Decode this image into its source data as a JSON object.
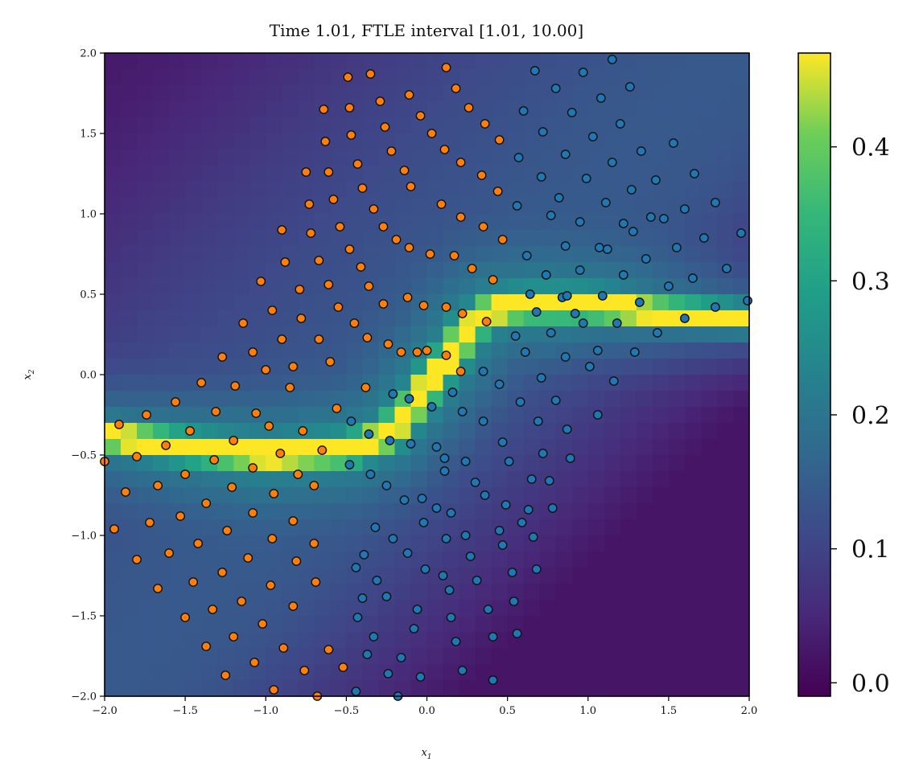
{
  "chart_data": {
    "type": "heatmap",
    "title": "Time 1.01, FTLE interval [1.01, 10.00]",
    "xlabel": "x",
    "xlabel_sub": "1",
    "ylabel": "x",
    "ylabel_sub": "2",
    "xlim": [
      -2.0,
      2.0
    ],
    "ylim": [
      -2.0,
      2.0
    ],
    "xticks": [
      "−2.0",
      "−1.5",
      "−1.0",
      "−0.5",
      "0.0",
      "0.5",
      "1.0",
      "1.5",
      "2.0"
    ],
    "yticks": [
      "−2.0",
      "−1.5",
      "−1.0",
      "−0.5",
      "0.0",
      "0.5",
      "1.0",
      "1.5",
      "2.0"
    ],
    "colormap": "viridis",
    "color_range": [
      -0.01,
      0.47
    ],
    "colorbar_ticks": [
      "0.0",
      "0.1",
      "0.2",
      "0.3",
      "0.4"
    ],
    "grid_resolution": 40,
    "field_description_points": {
      "ridge_center": [
        [
          -2.0,
          -0.38
        ],
        [
          -1.5,
          -0.45
        ],
        [
          -1.0,
          -0.5
        ],
        [
          -0.5,
          -0.47
        ],
        [
          -0.25,
          -0.38
        ],
        [
          -0.05,
          -0.15
        ],
        [
          0.05,
          0.0
        ],
        [
          0.15,
          0.12
        ],
        [
          0.25,
          0.28
        ],
        [
          0.4,
          0.4
        ],
        [
          0.6,
          0.43
        ],
        [
          1.0,
          0.43
        ],
        [
          1.5,
          0.38
        ],
        [
          2.0,
          0.35
        ]
      ],
      "ridge_peak": 0.46,
      "background_upper_left": 0.03,
      "background_lower_right": 0.0,
      "background_center_band": 0.12
    },
    "series": [
      {
        "name": "",
        "color": "#ff7f0e",
        "edge_color": "#111111",
        "points": [
          [
            -2.0,
            -0.54
          ],
          [
            -1.94,
            -0.96
          ],
          [
            -1.91,
            -0.31
          ],
          [
            -1.87,
            -0.73
          ],
          [
            -1.8,
            -1.15
          ],
          [
            -1.8,
            -0.51
          ],
          [
            -1.74,
            -0.25
          ],
          [
            -1.72,
            -0.92
          ],
          [
            -1.67,
            -1.33
          ],
          [
            -1.67,
            -0.69
          ],
          [
            -1.62,
            -0.44
          ],
          [
            -1.6,
            -1.11
          ],
          [
            -1.56,
            -0.17
          ],
          [
            -1.53,
            -0.88
          ],
          [
            -1.5,
            -1.51
          ],
          [
            -1.5,
            -0.62
          ],
          [
            -1.47,
            -0.35
          ],
          [
            -1.45,
            -1.29
          ],
          [
            -1.42,
            -1.05
          ],
          [
            -1.4,
            -0.05
          ],
          [
            -1.37,
            -0.8
          ],
          [
            -1.37,
            -1.69
          ],
          [
            -1.33,
            -1.46
          ],
          [
            -1.32,
            -0.53
          ],
          [
            -1.31,
            -0.23
          ],
          [
            -1.27,
            0.11
          ],
          [
            -1.27,
            -1.23
          ],
          [
            -1.25,
            -1.87
          ],
          [
            -1.24,
            -0.97
          ],
          [
            -1.21,
            -0.7
          ],
          [
            -1.2,
            -0.41
          ],
          [
            -1.2,
            -1.63
          ],
          [
            -1.19,
            -0.07
          ],
          [
            -1.15,
            -1.41
          ],
          [
            -1.14,
            0.32
          ],
          [
            -1.11,
            -1.14
          ],
          [
            -1.08,
            -0.86
          ],
          [
            -1.08,
            -0.58
          ],
          [
            -1.08,
            0.14
          ],
          [
            -1.07,
            -1.79
          ],
          [
            -1.06,
            -0.24
          ],
          [
            -1.03,
            0.58
          ],
          [
            -1.02,
            -1.55
          ],
          [
            -1.0,
            0.03
          ],
          [
            -0.98,
            -0.32
          ],
          [
            -0.97,
            -1.31
          ],
          [
            -0.96,
            -1.02
          ],
          [
            -0.96,
            0.4
          ],
          [
            -0.95,
            -0.74
          ],
          [
            -0.95,
            -1.96
          ],
          [
            -0.91,
            -0.49
          ],
          [
            -0.9,
            0.22
          ],
          [
            -0.9,
            0.9
          ],
          [
            -0.89,
            -1.7
          ],
          [
            -0.88,
            0.7
          ],
          [
            -0.85,
            -0.08
          ],
          [
            -0.83,
            -0.91
          ],
          [
            -0.83,
            -1.44
          ],
          [
            -0.83,
            0.05
          ],
          [
            -0.81,
            -1.16
          ],
          [
            -0.8,
            -0.62
          ],
          [
            -0.79,
            0.53
          ],
          [
            -0.78,
            0.35
          ],
          [
            -0.77,
            -0.35
          ],
          [
            -0.76,
            -1.84
          ],
          [
            -0.75,
            1.26
          ],
          [
            -0.73,
            1.06
          ],
          [
            -0.72,
            0.88
          ],
          [
            -0.7,
            -0.69
          ],
          [
            -0.7,
            -1.05
          ],
          [
            -0.69,
            -1.29
          ],
          [
            -0.68,
            -2.0
          ],
          [
            -0.67,
            0.22
          ],
          [
            -0.67,
            0.71
          ],
          [
            -0.65,
            -0.47
          ],
          [
            -0.64,
            1.65
          ],
          [
            -0.63,
            1.45
          ],
          [
            -0.61,
            -1.71
          ],
          [
            -0.61,
            0.56
          ],
          [
            -0.61,
            1.26
          ],
          [
            -0.6,
            0.08
          ],
          [
            -0.58,
            1.09
          ],
          [
            -0.56,
            -0.21
          ],
          [
            -0.55,
            0.42
          ],
          [
            -0.54,
            0.92
          ],
          [
            -0.52,
            -1.82
          ],
          [
            -0.49,
            1.85
          ],
          [
            -0.48,
            1.66
          ],
          [
            -0.48,
            0.78
          ],
          [
            -0.47,
            1.49
          ],
          [
            -0.45,
            0.32
          ],
          [
            -0.43,
            1.31
          ],
          [
            -0.41,
            0.67
          ],
          [
            -0.4,
            1.16
          ],
          [
            -0.38,
            -0.08
          ],
          [
            -0.37,
            0.23
          ],
          [
            -0.36,
            0.55
          ],
          [
            -0.35,
            1.87
          ],
          [
            -0.33,
            1.03
          ],
          [
            -0.29,
            1.7
          ],
          [
            -0.27,
            0.92
          ],
          [
            -0.27,
            0.44
          ],
          [
            -0.26,
            1.54
          ],
          [
            -0.24,
            0.19
          ],
          [
            -0.22,
            1.39
          ],
          [
            -0.19,
            0.84
          ],
          [
            -0.16,
            0.14
          ],
          [
            -0.14,
            1.27
          ],
          [
            -0.12,
            0.48
          ],
          [
            -0.11,
            1.74
          ],
          [
            -0.11,
            0.79
          ],
          [
            -0.1,
            1.17
          ],
          [
            -0.06,
            0.14
          ],
          [
            -0.04,
            1.61
          ],
          [
            -0.02,
            0.43
          ],
          [
            0.0,
            0.15
          ],
          [
            0.02,
            0.75
          ],
          [
            0.03,
            1.5
          ],
          [
            0.09,
            1.06
          ],
          [
            0.11,
            1.4
          ],
          [
            0.12,
            0.42
          ],
          [
            0.12,
            0.12
          ],
          [
            0.12,
            1.91
          ],
          [
            0.17,
            0.74
          ],
          [
            0.18,
            1.78
          ],
          [
            0.21,
            1.32
          ],
          [
            0.21,
            0.02
          ],
          [
            0.22,
            0.38
          ],
          [
            0.21,
            0.98
          ],
          [
            0.26,
            1.66
          ],
          [
            0.28,
            0.66
          ],
          [
            0.34,
            1.24
          ],
          [
            0.35,
            0.92
          ],
          [
            0.36,
            1.56
          ],
          [
            0.37,
            0.33
          ],
          [
            0.41,
            0.59
          ],
          [
            0.44,
            1.14
          ],
          [
            0.45,
            1.46
          ],
          [
            0.47,
            0.84
          ]
        ]
      },
      {
        "name": "",
        "color": "#1f77b4",
        "edge_color": "#111111",
        "points": [
          [
            -0.48,
            -0.56
          ],
          [
            -0.47,
            -0.29
          ],
          [
            -0.44,
            -1.97
          ],
          [
            -0.44,
            -1.2
          ],
          [
            -0.43,
            -1.51
          ],
          [
            -0.4,
            -1.39
          ],
          [
            -0.39,
            -1.12
          ],
          [
            -0.37,
            -1.74
          ],
          [
            -0.36,
            -0.37
          ],
          [
            -0.35,
            -0.62
          ],
          [
            -0.33,
            -1.63
          ],
          [
            -0.32,
            -0.95
          ],
          [
            -0.31,
            -1.28
          ],
          [
            -0.25,
            -0.69
          ],
          [
            -0.25,
            -1.38
          ],
          [
            -0.24,
            -1.86
          ],
          [
            -0.23,
            -0.41
          ],
          [
            -0.21,
            -0.12
          ],
          [
            -0.21,
            -1.02
          ],
          [
            -0.18,
            -2.0
          ],
          [
            -0.16,
            -1.76
          ],
          [
            -0.14,
            -0.78
          ],
          [
            -0.12,
            -1.11
          ],
          [
            -0.11,
            -0.15
          ],
          [
            -0.1,
            -0.43
          ],
          [
            -0.08,
            -1.58
          ],
          [
            -0.06,
            -1.46
          ],
          [
            -0.04,
            -1.88
          ],
          [
            -0.03,
            -0.77
          ],
          [
            -0.02,
            -0.92
          ],
          [
            -0.01,
            -1.21
          ],
          [
            0.03,
            -0.2
          ],
          [
            0.06,
            -0.83
          ],
          [
            0.06,
            -0.45
          ],
          [
            0.1,
            -1.25
          ],
          [
            0.11,
            -0.52
          ],
          [
            0.11,
            -0.6
          ],
          [
            0.12,
            -1.02
          ],
          [
            0.14,
            -1.34
          ],
          [
            0.15,
            -1.51
          ],
          [
            0.15,
            -0.86
          ],
          [
            0.16,
            -0.11
          ],
          [
            0.18,
            -1.66
          ],
          [
            0.22,
            -0.23
          ],
          [
            0.22,
            -1.84
          ],
          [
            0.24,
            -0.54
          ],
          [
            0.24,
            -1.0
          ],
          [
            0.27,
            -1.13
          ],
          [
            0.3,
            -0.67
          ],
          [
            0.31,
            -1.28
          ],
          [
            0.35,
            -0.29
          ],
          [
            0.35,
            0.02
          ],
          [
            0.36,
            -0.75
          ],
          [
            0.38,
            -1.46
          ],
          [
            0.41,
            -1.9
          ],
          [
            0.41,
            -1.63
          ],
          [
            0.45,
            -0.06
          ],
          [
            0.45,
            -0.97
          ],
          [
            0.47,
            -0.42
          ],
          [
            0.47,
            -1.06
          ],
          [
            0.49,
            -0.81
          ],
          [
            0.51,
            -0.54
          ],
          [
            0.53,
            -1.23
          ],
          [
            0.54,
            -1.41
          ],
          [
            0.55,
            0.24
          ],
          [
            0.56,
            -1.61
          ],
          [
            0.58,
            -0.17
          ],
          [
            0.59,
            -0.92
          ],
          [
            0.61,
            0.14
          ],
          [
            0.63,
            -0.84
          ],
          [
            0.65,
            -0.65
          ],
          [
            0.66,
            -1.01
          ],
          [
            0.68,
            0.39
          ],
          [
            0.68,
            -1.21
          ],
          [
            0.69,
            -0.29
          ],
          [
            0.71,
            -0.02
          ],
          [
            0.72,
            -0.49
          ],
          [
            0.76,
            -0.66
          ],
          [
            0.77,
            0.26
          ],
          [
            0.78,
            -0.83
          ],
          [
            0.8,
            -0.16
          ],
          [
            0.84,
            0.48
          ],
          [
            0.86,
            0.11
          ],
          [
            0.87,
            -0.34
          ],
          [
            0.89,
            -0.52
          ],
          [
            0.92,
            0.38
          ],
          [
            0.95,
            0.65
          ],
          [
            0.97,
            0.32
          ],
          [
            1.01,
            0.05
          ],
          [
            1.06,
            -0.25
          ],
          [
            1.06,
            0.15
          ],
          [
            1.09,
            0.49
          ],
          [
            1.12,
            0.78
          ],
          [
            1.16,
            -0.04
          ],
          [
            1.18,
            0.32
          ],
          [
            1.22,
            0.62
          ],
          [
            1.28,
            0.89
          ],
          [
            1.29,
            0.14
          ],
          [
            1.32,
            0.45
          ],
          [
            1.36,
            0.72
          ],
          [
            1.43,
            0.26
          ],
          [
            1.47,
            0.97
          ],
          [
            1.5,
            0.55
          ],
          [
            1.55,
            0.79
          ],
          [
            1.6,
            0.35
          ],
          [
            1.65,
            0.6
          ],
          [
            1.72,
            0.85
          ],
          [
            1.79,
            0.42
          ],
          [
            1.86,
            0.66
          ],
          [
            1.95,
            0.88
          ],
          [
            1.99,
            0.46
          ],
          [
            0.56,
            1.05
          ],
          [
            0.57,
            1.35
          ],
          [
            0.6,
            1.64
          ],
          [
            0.62,
            0.74
          ],
          [
            0.64,
            0.5
          ],
          [
            0.67,
            1.89
          ],
          [
            0.71,
            1.23
          ],
          [
            0.72,
            1.51
          ],
          [
            0.74,
            0.62
          ],
          [
            0.77,
            0.99
          ],
          [
            0.8,
            1.78
          ],
          [
            0.82,
            1.1
          ],
          [
            0.86,
            0.8
          ],
          [
            0.86,
            1.37
          ],
          [
            0.87,
            0.49
          ],
          [
            0.9,
            1.63
          ],
          [
            0.95,
            0.95
          ],
          [
            0.97,
            1.88
          ],
          [
            0.99,
            1.22
          ],
          [
            1.03,
            1.48
          ],
          [
            1.07,
            0.79
          ],
          [
            1.08,
            1.72
          ],
          [
            1.11,
            1.07
          ],
          [
            1.15,
            1.32
          ],
          [
            1.15,
            1.96
          ],
          [
            1.2,
            1.56
          ],
          [
            1.22,
            0.94
          ],
          [
            1.26,
            1.79
          ],
          [
            1.27,
            1.15
          ],
          [
            1.33,
            1.39
          ],
          [
            1.39,
            0.98
          ],
          [
            1.42,
            1.21
          ],
          [
            1.53,
            1.44
          ],
          [
            1.6,
            1.03
          ],
          [
            1.66,
            1.25
          ],
          [
            1.79,
            1.07
          ]
        ]
      }
    ]
  }
}
